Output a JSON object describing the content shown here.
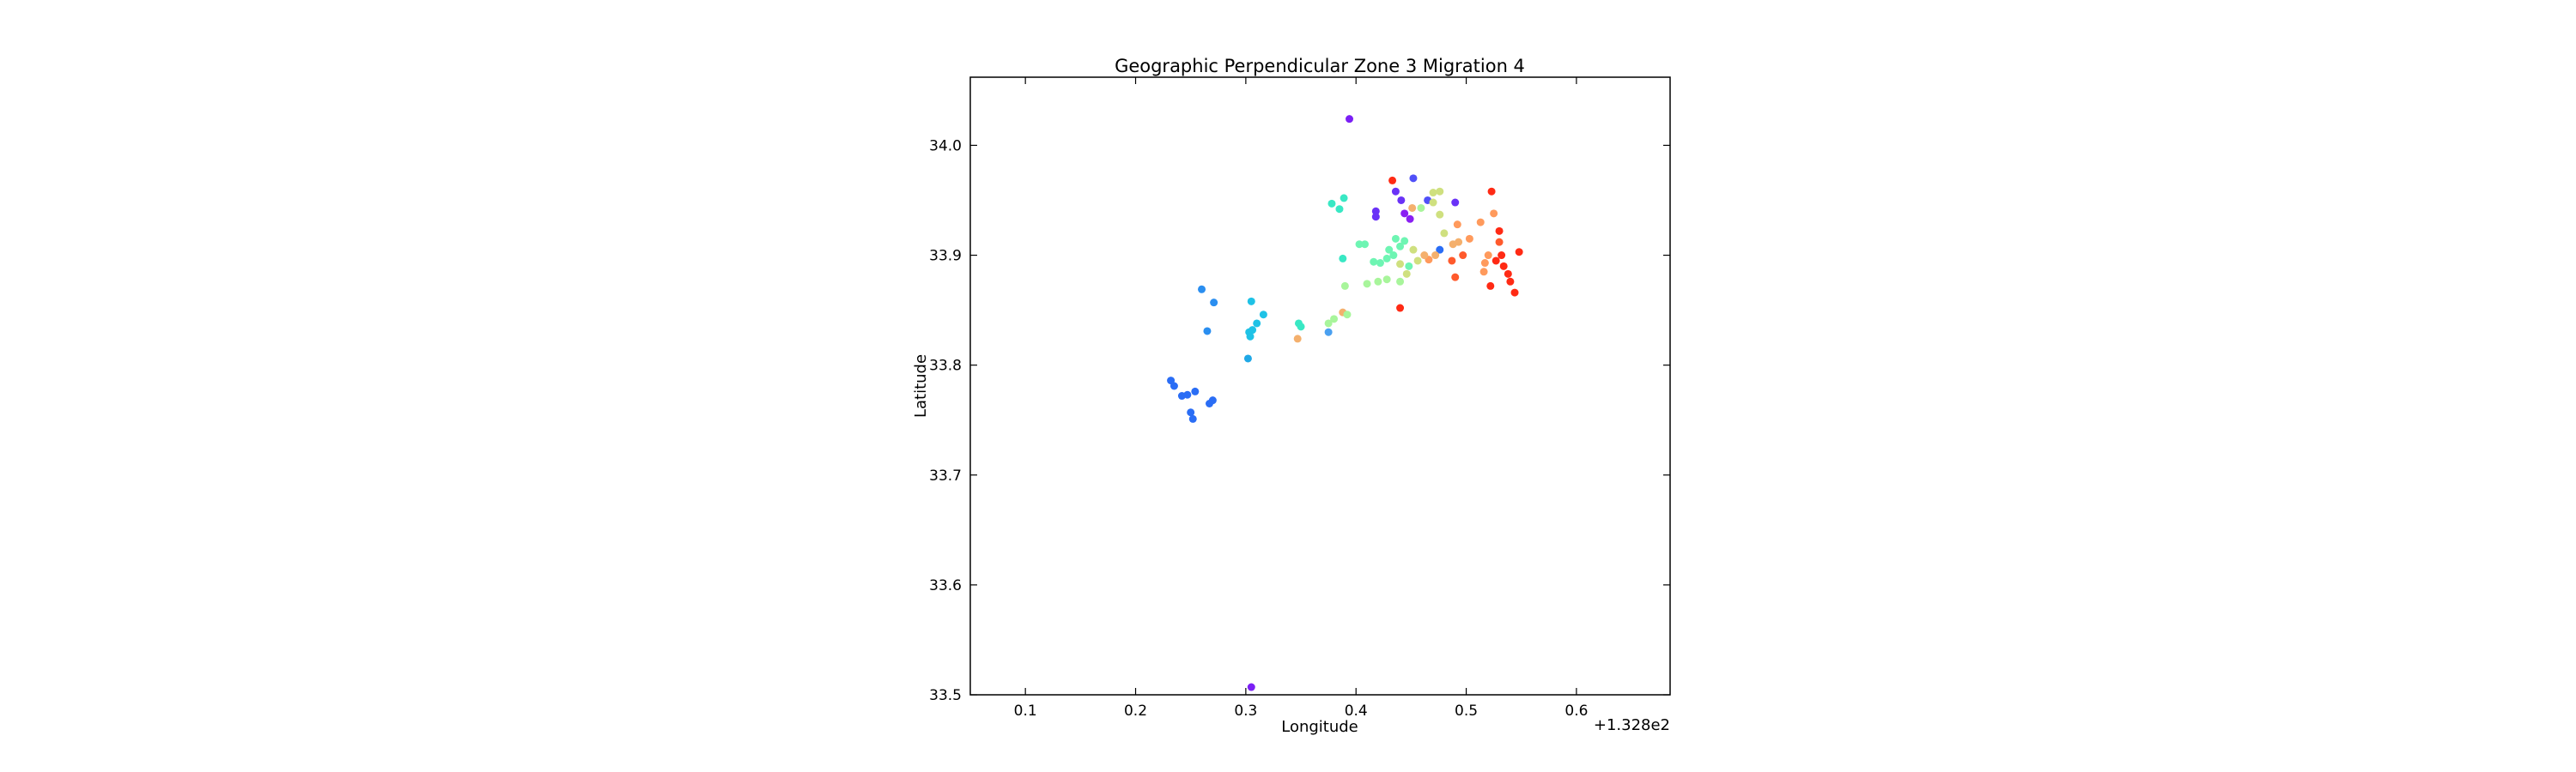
{
  "chart_data": {
    "type": "scatter",
    "title": "Geographic Perpendicular Zone 3 Migration 4",
    "xlabel": "Longitude",
    "ylabel": "Latitude",
    "x_offset_label": "+1.328e2",
    "xlim": [
      0.05,
      0.685
    ],
    "ylim": [
      33.5,
      34.062
    ],
    "x_ticks": [
      0.1,
      0.2,
      0.3,
      0.4,
      0.5,
      0.6
    ],
    "x_tick_labels": [
      "0.1",
      "0.2",
      "0.3",
      "0.4",
      "0.5",
      "0.6"
    ],
    "y_ticks": [
      33.5,
      33.6,
      33.7,
      33.8,
      33.9,
      34.0
    ],
    "y_tick_labels": [
      "33.5",
      "33.6",
      "33.7",
      "33.8",
      "33.9",
      "34.0"
    ],
    "grid": false,
    "legend": false,
    "colormap": "rainbow",
    "points": [
      {
        "x": 0.394,
        "y": 34.024,
        "color": "#7b1ff5"
      },
      {
        "x": 0.305,
        "y": 33.507,
        "color": "#7b1ff5"
      },
      {
        "x": 0.433,
        "y": 33.968,
        "color": "#ff2a14"
      },
      {
        "x": 0.452,
        "y": 33.97,
        "color": "#5050f8"
      },
      {
        "x": 0.436,
        "y": 33.958,
        "color": "#6a32f7"
      },
      {
        "x": 0.441,
        "y": 33.95,
        "color": "#6a32f7"
      },
      {
        "x": 0.418,
        "y": 33.94,
        "color": "#6a32f7"
      },
      {
        "x": 0.418,
        "y": 33.935,
        "color": "#6a32f7"
      },
      {
        "x": 0.444,
        "y": 33.938,
        "color": "#8a1ff2"
      },
      {
        "x": 0.449,
        "y": 33.933,
        "color": "#8a1ff2"
      },
      {
        "x": 0.465,
        "y": 33.95,
        "color": "#5050f8"
      },
      {
        "x": 0.49,
        "y": 33.948,
        "color": "#6a32f7"
      },
      {
        "x": 0.523,
        "y": 33.958,
        "color": "#ff2a14"
      },
      {
        "x": 0.47,
        "y": 33.957,
        "color": "#cfe07f"
      },
      {
        "x": 0.476,
        "y": 33.958,
        "color": "#cfe07f"
      },
      {
        "x": 0.47,
        "y": 33.948,
        "color": "#cfe07f"
      },
      {
        "x": 0.476,
        "y": 33.937,
        "color": "#cfe07f"
      },
      {
        "x": 0.459,
        "y": 33.943,
        "color": "#a8f59b"
      },
      {
        "x": 0.451,
        "y": 33.943,
        "color": "#f4b06d"
      },
      {
        "x": 0.525,
        "y": 33.938,
        "color": "#ff9a5c"
      },
      {
        "x": 0.513,
        "y": 33.93,
        "color": "#ff9a5c"
      },
      {
        "x": 0.492,
        "y": 33.928,
        "color": "#ff9a5c"
      },
      {
        "x": 0.53,
        "y": 33.922,
        "color": "#ff2a14"
      },
      {
        "x": 0.503,
        "y": 33.915,
        "color": "#ff9a5c"
      },
      {
        "x": 0.48,
        "y": 33.92,
        "color": "#cfe07f"
      },
      {
        "x": 0.488,
        "y": 33.91,
        "color": "#f4b06d"
      },
      {
        "x": 0.493,
        "y": 33.912,
        "color": "#f4b06d"
      },
      {
        "x": 0.53,
        "y": 33.912,
        "color": "#ff5a2c"
      },
      {
        "x": 0.548,
        "y": 33.903,
        "color": "#ff2a14"
      },
      {
        "x": 0.532,
        "y": 33.9,
        "color": "#ff2a14"
      },
      {
        "x": 0.527,
        "y": 33.895,
        "color": "#ff2a14"
      },
      {
        "x": 0.534,
        "y": 33.89,
        "color": "#ff2a14"
      },
      {
        "x": 0.52,
        "y": 33.9,
        "color": "#ff9a5c"
      },
      {
        "x": 0.517,
        "y": 33.893,
        "color": "#ff9a5c"
      },
      {
        "x": 0.497,
        "y": 33.9,
        "color": "#ff5a2c"
      },
      {
        "x": 0.487,
        "y": 33.895,
        "color": "#ff5a2c"
      },
      {
        "x": 0.516,
        "y": 33.885,
        "color": "#ff9a5c"
      },
      {
        "x": 0.538,
        "y": 33.883,
        "color": "#ff2a14"
      },
      {
        "x": 0.54,
        "y": 33.876,
        "color": "#ff2a14"
      },
      {
        "x": 0.522,
        "y": 33.872,
        "color": "#ff2a14"
      },
      {
        "x": 0.544,
        "y": 33.866,
        "color": "#ff2a14"
      },
      {
        "x": 0.49,
        "y": 33.88,
        "color": "#ff5a2c"
      },
      {
        "x": 0.44,
        "y": 33.852,
        "color": "#ff2a14"
      },
      {
        "x": 0.476,
        "y": 33.905,
        "color": "#2a6df5"
      },
      {
        "x": 0.466,
        "y": 33.896,
        "color": "#ff9a5c"
      },
      {
        "x": 0.462,
        "y": 33.9,
        "color": "#f4b06d"
      },
      {
        "x": 0.472,
        "y": 33.9,
        "color": "#f4b06d"
      },
      {
        "x": 0.452,
        "y": 33.905,
        "color": "#cfe07f"
      },
      {
        "x": 0.456,
        "y": 33.895,
        "color": "#cfe07f"
      },
      {
        "x": 0.44,
        "y": 33.892,
        "color": "#cfe07f"
      },
      {
        "x": 0.446,
        "y": 33.883,
        "color": "#cfe07f"
      },
      {
        "x": 0.436,
        "y": 33.915,
        "color": "#6ef5b3"
      },
      {
        "x": 0.44,
        "y": 33.908,
        "color": "#6ef5b3"
      },
      {
        "x": 0.444,
        "y": 33.913,
        "color": "#6ef5b3"
      },
      {
        "x": 0.434,
        "y": 33.9,
        "color": "#6ef5b3"
      },
      {
        "x": 0.428,
        "y": 33.897,
        "color": "#6ef5b3"
      },
      {
        "x": 0.43,
        "y": 33.905,
        "color": "#6ef5b3"
      },
      {
        "x": 0.422,
        "y": 33.893,
        "color": "#6ef5b3"
      },
      {
        "x": 0.416,
        "y": 33.894,
        "color": "#6ef5b3"
      },
      {
        "x": 0.448,
        "y": 33.89,
        "color": "#6ef5b3"
      },
      {
        "x": 0.44,
        "y": 33.876,
        "color": "#a8f59b"
      },
      {
        "x": 0.428,
        "y": 33.878,
        "color": "#a8f59b"
      },
      {
        "x": 0.42,
        "y": 33.876,
        "color": "#a8f59b"
      },
      {
        "x": 0.41,
        "y": 33.874,
        "color": "#a8f59b"
      },
      {
        "x": 0.403,
        "y": 33.91,
        "color": "#6ef5b3"
      },
      {
        "x": 0.408,
        "y": 33.91,
        "color": "#6ef5b3"
      },
      {
        "x": 0.388,
        "y": 33.897,
        "color": "#39e8c4"
      },
      {
        "x": 0.378,
        "y": 33.947,
        "color": "#39e8c4"
      },
      {
        "x": 0.385,
        "y": 33.942,
        "color": "#39e8c4"
      },
      {
        "x": 0.389,
        "y": 33.952,
        "color": "#39e8c4"
      },
      {
        "x": 0.39,
        "y": 33.872,
        "color": "#a8f59b"
      },
      {
        "x": 0.388,
        "y": 33.848,
        "color": "#f4b06d"
      },
      {
        "x": 0.392,
        "y": 33.846,
        "color": "#a8f59b"
      },
      {
        "x": 0.38,
        "y": 33.842,
        "color": "#a8f59b"
      },
      {
        "x": 0.375,
        "y": 33.838,
        "color": "#a8f59b"
      },
      {
        "x": 0.375,
        "y": 33.83,
        "color": "#4aa0f0"
      },
      {
        "x": 0.348,
        "y": 33.838,
        "color": "#39e8c4"
      },
      {
        "x": 0.35,
        "y": 33.835,
        "color": "#39e8c4"
      },
      {
        "x": 0.347,
        "y": 33.824,
        "color": "#f4b06d"
      },
      {
        "x": 0.26,
        "y": 33.869,
        "color": "#2a8ef0"
      },
      {
        "x": 0.271,
        "y": 33.857,
        "color": "#2a8ef0"
      },
      {
        "x": 0.305,
        "y": 33.858,
        "color": "#1fc2e6"
      },
      {
        "x": 0.316,
        "y": 33.846,
        "color": "#1fc2e6"
      },
      {
        "x": 0.31,
        "y": 33.838,
        "color": "#1fc2e6"
      },
      {
        "x": 0.306,
        "y": 33.832,
        "color": "#1fc2e6"
      },
      {
        "x": 0.303,
        "y": 33.83,
        "color": "#1fc2e6"
      },
      {
        "x": 0.304,
        "y": 33.826,
        "color": "#1fc2e6"
      },
      {
        "x": 0.265,
        "y": 33.831,
        "color": "#2a8ef0"
      },
      {
        "x": 0.302,
        "y": 33.806,
        "color": "#1fa8e6"
      },
      {
        "x": 0.232,
        "y": 33.786,
        "color": "#2a6df5"
      },
      {
        "x": 0.235,
        "y": 33.781,
        "color": "#2a6df5"
      },
      {
        "x": 0.242,
        "y": 33.772,
        "color": "#2a6df5"
      },
      {
        "x": 0.247,
        "y": 33.773,
        "color": "#2a6df5"
      },
      {
        "x": 0.254,
        "y": 33.776,
        "color": "#2a6df5"
      },
      {
        "x": 0.27,
        "y": 33.768,
        "color": "#2a6df5"
      },
      {
        "x": 0.267,
        "y": 33.765,
        "color": "#2a6df5"
      },
      {
        "x": 0.25,
        "y": 33.757,
        "color": "#2a6df5"
      },
      {
        "x": 0.252,
        "y": 33.751,
        "color": "#2a6df5"
      }
    ]
  }
}
